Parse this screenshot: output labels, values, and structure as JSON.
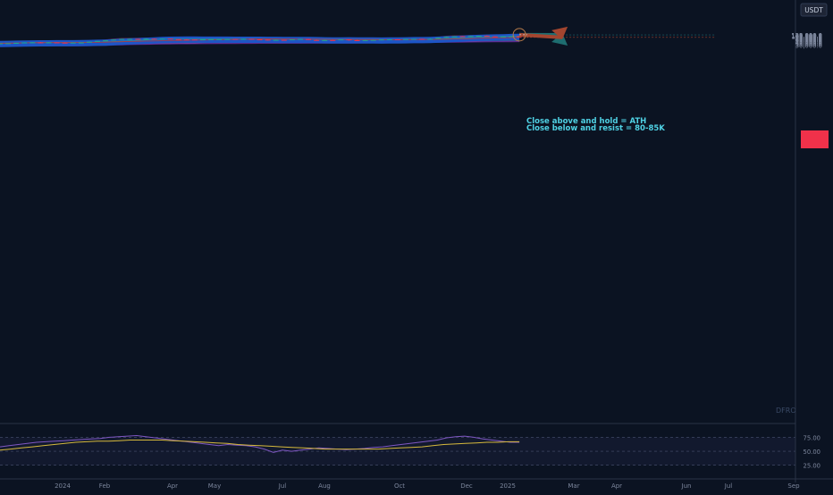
{
  "currency": "USDT",
  "current_price_label": "",
  "watermark": "DFRO",
  "annotation": {
    "line1": "Close above and hold = ATH",
    "line2": "Close below and resist = 80-85K"
  },
  "colors": {
    "background": "#0b1322",
    "up": "#22a889",
    "down": "#f0314a",
    "ribbon_blue": "#1d55c6",
    "arrow_up": "#1e6d70",
    "arrow_down": "#a3452f",
    "annotation_text": "#4fd1e4",
    "rsi_line": "#7e57c2",
    "rsi_ma": "#d6b93c"
  },
  "chart_data": [
    {
      "type": "candlestick",
      "interval": "weekly",
      "currency": "USDT",
      "x_tick_labels": [
        "2024",
        "Feb",
        "Apr",
        "May",
        "Jul",
        "Aug",
        "Oct",
        "Dec",
        "2025",
        "Mar",
        "Apr",
        "Jun",
        "Jul",
        "Sep"
      ],
      "y_tick_labels": [
        "120,000.0",
        "115,000.0",
        "110,000.0",
        "105,000.0",
        "100,000.0",
        "95,000.0",
        "90,000.0",
        "85,000.0",
        "80,000.0",
        "75,000.0",
        "70,000.0",
        "65,000.0",
        "60,000.0",
        "55,000.0",
        "50,000.0",
        "45,000.0",
        "40,000.0",
        "35,000.0",
        "30,000.0"
      ],
      "y_scale": "log",
      "ylim": [
        29000,
        123000
      ],
      "candles": [
        {
          "o": 37000,
          "h": 37800,
          "l": 36300,
          "c": 37400
        },
        {
          "o": 37400,
          "h": 38500,
          "l": 36500,
          "c": 38000
        },
        {
          "o": 38000,
          "h": 40500,
          "l": 37500,
          "c": 40000
        },
        {
          "o": 40000,
          "h": 43200,
          "l": 39500,
          "c": 42500
        },
        {
          "o": 42500,
          "h": 44000,
          "l": 41500,
          "c": 43000
        },
        {
          "o": 43000,
          "h": 45000,
          "l": 38500,
          "c": 41700
        },
        {
          "o": 41700,
          "h": 43800,
          "l": 40800,
          "c": 42800
        },
        {
          "o": 42800,
          "h": 43500,
          "l": 41000,
          "c": 41500
        },
        {
          "o": 41500,
          "h": 43000,
          "l": 40000,
          "c": 41200
        },
        {
          "o": 41200,
          "h": 42200,
          "l": 40500,
          "c": 41600
        },
        {
          "o": 41600,
          "h": 42500,
          "l": 41000,
          "c": 41900
        },
        {
          "o": 41900,
          "h": 47800,
          "l": 41500,
          "c": 47000
        },
        {
          "o": 47000,
          "h": 52500,
          "l": 46500,
          "c": 52000
        },
        {
          "o": 52000,
          "h": 57000,
          "l": 51000,
          "c": 56500
        },
        {
          "o": 56500,
          "h": 64000,
          "l": 55500,
          "c": 62500
        },
        {
          "o": 62500,
          "h": 69000,
          "l": 61000,
          "c": 68500
        },
        {
          "o": 68500,
          "h": 70500,
          "l": 65000,
          "c": 68800
        },
        {
          "o": 68800,
          "h": 71000,
          "l": 66000,
          "c": 67500
        },
        {
          "o": 67500,
          "h": 72500,
          "l": 66500,
          "c": 70000
        },
        {
          "o": 70000,
          "h": 72000,
          "l": 67000,
          "c": 69500
        },
        {
          "o": 69500,
          "h": 73000,
          "l": 68000,
          "c": 71500
        },
        {
          "o": 71500,
          "h": 72000,
          "l": 65000,
          "c": 66500
        },
        {
          "o": 66500,
          "h": 66500,
          "l": 59500,
          "c": 63500
        },
        {
          "o": 63500,
          "h": 66000,
          "l": 60500,
          "c": 63200
        },
        {
          "o": 63200,
          "h": 64000,
          "l": 58000,
          "c": 61500
        },
        {
          "o": 61500,
          "h": 65500,
          "l": 60500,
          "c": 64500
        },
        {
          "o": 64500,
          "h": 66500,
          "l": 63500,
          "c": 66000
        },
        {
          "o": 66000,
          "h": 67500,
          "l": 63000,
          "c": 67000
        },
        {
          "o": 67000,
          "h": 69000,
          "l": 65500,
          "c": 68000
        },
        {
          "o": 68000,
          "h": 70000,
          "l": 66000,
          "c": 67300
        },
        {
          "o": 67300,
          "h": 71500,
          "l": 66500,
          "c": 69000
        },
        {
          "o": 69000,
          "h": 70000,
          "l": 64000,
          "c": 64500
        },
        {
          "o": 64500,
          "h": 65500,
          "l": 61000,
          "c": 62500
        },
        {
          "o": 62500,
          "h": 63500,
          "l": 55000,
          "c": 57000
        },
        {
          "o": 57000,
          "h": 62000,
          "l": 54500,
          "c": 60500
        },
        {
          "o": 60500,
          "h": 61500,
          "l": 57000,
          "c": 59000
        },
        {
          "o": 59000,
          "h": 65000,
          "l": 57500,
          "c": 64500
        },
        {
          "o": 64500,
          "h": 69000,
          "l": 63500,
          "c": 68000
        },
        {
          "o": 68000,
          "h": 70000,
          "l": 58500,
          "c": 59000
        },
        {
          "o": 59000,
          "h": 62000,
          "l": 57000,
          "c": 58500
        },
        {
          "o": 58500,
          "h": 61500,
          "l": 56000,
          "c": 58700
        },
        {
          "o": 58700,
          "h": 60500,
          "l": 57500,
          "c": 58000
        },
        {
          "o": 58000,
          "h": 64500,
          "l": 57500,
          "c": 64000
        },
        {
          "o": 64000,
          "h": 65000,
          "l": 54000,
          "c": 57500
        },
        {
          "o": 57500,
          "h": 61000,
          "l": 53000,
          "c": 55000
        },
        {
          "o": 55000,
          "h": 60000,
          "l": 53500,
          "c": 58500
        },
        {
          "o": 58500,
          "h": 61000,
          "l": 55500,
          "c": 59800
        },
        {
          "o": 59800,
          "h": 64500,
          "l": 59000,
          "c": 63500
        },
        {
          "o": 63500,
          "h": 66500,
          "l": 62000,
          "c": 65000
        },
        {
          "o": 65000,
          "h": 66000,
          "l": 62000,
          "c": 63000
        },
        {
          "o": 63000,
          "h": 68000,
          "l": 61500,
          "c": 67500
        },
        {
          "o": 67500,
          "h": 69500,
          "l": 66000,
          "c": 69000
        },
        {
          "o": 69000,
          "h": 70000,
          "l": 66500,
          "c": 68500
        },
        {
          "o": 68500,
          "h": 74000,
          "l": 67500,
          "c": 69500
        },
        {
          "o": 69500,
          "h": 82000,
          "l": 69000,
          "c": 80500
        },
        {
          "o": 80500,
          "h": 93000,
          "l": 79500,
          "c": 91000
        },
        {
          "o": 91000,
          "h": 99000,
          "l": 88500,
          "c": 98000
        },
        {
          "o": 98000,
          "h": 100500,
          "l": 90500,
          "c": 97000
        },
        {
          "o": 97000,
          "h": 102500,
          "l": 94000,
          "c": 101000
        },
        {
          "o": 101000,
          "h": 104500,
          "l": 97000,
          "c": 104000
        },
        {
          "o": 104000,
          "h": 108500,
          "l": 94000,
          "c": 95500
        },
        {
          "o": 95500,
          "h": 99500,
          "l": 92000,
          "c": 93500
        },
        {
          "o": 93500,
          "h": 98000,
          "l": 91500,
          "c": 94500
        },
        {
          "o": 94500,
          "h": 102000,
          "l": 93000,
          "c": 98500
        },
        {
          "o": 98500,
          "h": 101500,
          "l": 93000,
          "c": 94500
        }
      ],
      "projections": [
        {
          "direction": "up",
          "target": 118000
        },
        {
          "direction": "down",
          "target": 84000
        }
      ]
    },
    {
      "type": "line",
      "name": "",
      "yticks": [
        "75.00",
        "50.00",
        "25.00"
      ],
      "ylim": [
        15,
        90
      ],
      "series": [
        {
          "values": [
            58,
            60,
            62,
            64,
            66,
            67,
            68,
            69,
            70,
            71,
            72,
            73,
            75,
            76,
            77,
            78,
            76,
            74,
            72,
            70,
            68,
            66,
            64,
            62,
            60,
            62,
            61,
            60,
            58,
            54,
            48,
            52,
            50,
            52,
            54,
            56,
            55,
            54,
            53,
            54,
            55,
            57,
            58,
            60,
            62,
            64,
            66,
            68,
            70,
            74,
            76,
            77,
            75,
            72,
            70,
            68,
            66,
            66
          ]
        },
        {
          "values": [
            52,
            54,
            56,
            58,
            60,
            62,
            64,
            66,
            67,
            68,
            68,
            69,
            70,
            70,
            70,
            70,
            69,
            68,
            67,
            66,
            65,
            64,
            62,
            61,
            60,
            59,
            58,
            57,
            56,
            55,
            54,
            54,
            54,
            54,
            54,
            54,
            55,
            56,
            57,
            58,
            60,
            62,
            63,
            64,
            65,
            66,
            66,
            67,
            67
          ]
        }
      ]
    }
  ]
}
